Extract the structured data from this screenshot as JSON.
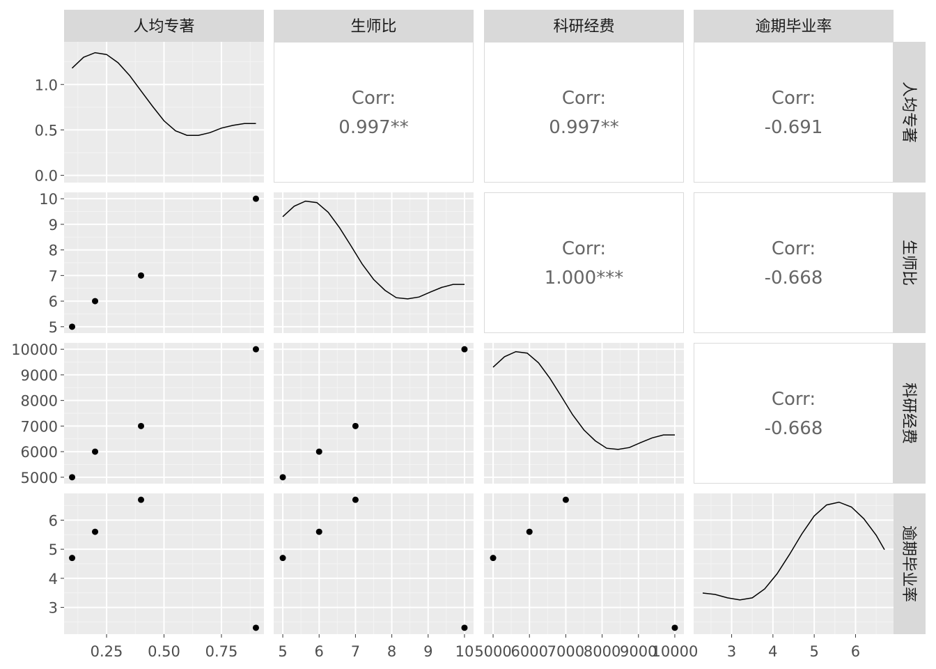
{
  "chart_data": {
    "type": "scatter",
    "title": "",
    "variables": [
      "人均专著",
      "生师比",
      "科研经费",
      "逾期毕业率"
    ],
    "observations": [
      {
        "人均专著": 0.1,
        "生师比": 5,
        "科研经费": 5000,
        "逾期毕业率": 4.7
      },
      {
        "人均专著": 0.2,
        "生师比": 6,
        "科研经费": 6000,
        "逾期毕业率": 5.6
      },
      {
        "人均专著": 0.4,
        "生师比": 7,
        "科研经费": 7000,
        "逾期毕业率": 6.7
      },
      {
        "人均专著": 0.9,
        "生师比": 10,
        "科研经费": 10000,
        "逾期毕业率": 2.3
      }
    ],
    "correlations": [
      {
        "row": "人均专著",
        "col": "生师比",
        "label": "Corr:",
        "value": "0.997**"
      },
      {
        "row": "人均专著",
        "col": "科研经费",
        "label": "Corr:",
        "value": "0.997**"
      },
      {
        "row": "人均专著",
        "col": "逾期毕业率",
        "label": "Corr:",
        "value": "-0.691"
      },
      {
        "row": "生师比",
        "col": "科研经费",
        "label": "Corr:",
        "value": "1.000***"
      },
      {
        "row": "生师比",
        "col": "逾期毕业率",
        "label": "Corr:",
        "value": "-0.668"
      },
      {
        "row": "科研经费",
        "col": "逾期毕业率",
        "label": "Corr:",
        "value": "-0.668"
      }
    ],
    "x_axes": [
      {
        "variable": "人均专著",
        "lim": [
          0.065,
          0.935
        ],
        "ticks": [
          0.25,
          0.5,
          0.75
        ],
        "tick_labels": [
          "0.25",
          "0.50",
          "0.75"
        ]
      },
      {
        "variable": "生师比",
        "lim": [
          4.75,
          10.25
        ],
        "ticks": [
          5,
          6,
          7,
          8,
          9,
          10
        ],
        "tick_labels": [
          "5",
          "6",
          "7",
          "8",
          "9",
          "10"
        ]
      },
      {
        "variable": "科研经费",
        "lim": [
          4750,
          10250
        ],
        "ticks": [
          5000,
          6000,
          7000,
          8000,
          9000,
          10000
        ],
        "tick_labels": [
          "5000",
          "6000",
          "7000",
          "8000",
          "9000",
          "10000"
        ]
      },
      {
        "variable": "逾期毕业率",
        "lim": [
          2.08,
          6.92
        ],
        "ticks": [
          3,
          4,
          5,
          6
        ],
        "tick_labels": [
          "3",
          "4",
          "5",
          "6"
        ]
      }
    ],
    "y_axes": [
      {
        "variable": "人均专著",
        "lim": [
          -0.08,
          1.47
        ],
        "ticks": [
          0,
          0.5,
          1.0
        ],
        "tick_labels": [
          "0.0",
          "0.5",
          "1.0"
        ]
      },
      {
        "variable": "生师比",
        "lim": [
          4.75,
          10.25
        ],
        "ticks": [
          5,
          6,
          7,
          8,
          9,
          10
        ],
        "tick_labels": [
          "5",
          "6",
          "7",
          "8",
          "9",
          "10"
        ]
      },
      {
        "variable": "科研经费",
        "lim": [
          4750,
          10250
        ],
        "ticks": [
          5000,
          6000,
          7000,
          8000,
          9000,
          10000
        ],
        "tick_labels": [
          "5000",
          "6000",
          "7000",
          "8000",
          "9000",
          "10000"
        ]
      },
      {
        "variable": "逾期毕业率",
        "lim": [
          2.08,
          6.92
        ],
        "ticks": [
          3,
          4,
          5,
          6
        ],
        "tick_labels": [
          "3",
          "4",
          "5",
          "6"
        ]
      }
    ],
    "densities": [
      {
        "variable": "人均专著",
        "x": [
          0.1,
          0.15,
          0.2,
          0.25,
          0.3,
          0.35,
          0.4,
          0.45,
          0.5,
          0.55,
          0.6,
          0.65,
          0.7,
          0.75,
          0.8,
          0.85,
          0.9
        ],
        "y": [
          1.18,
          1.3,
          1.35,
          1.33,
          1.24,
          1.1,
          0.93,
          0.76,
          0.6,
          0.49,
          0.44,
          0.44,
          0.47,
          0.52,
          0.55,
          0.57,
          0.57
        ]
      },
      {
        "variable": "生师比",
        "x": [
          5,
          5.3125,
          5.625,
          5.9375,
          6.25,
          6.5625,
          6.875,
          7.1875,
          7.5,
          7.8125,
          8.125,
          8.4375,
          8.75,
          9.0625,
          9.375,
          9.6875,
          10
        ],
        "y": [
          0.0894,
          0.0966,
          0.1001,
          0.0991,
          0.0924,
          0.0818,
          0.0694,
          0.0567,
          0.0462,
          0.0387,
          0.0336,
          0.0328,
          0.0341,
          0.0375,
          0.0407,
          0.0428,
          0.0428
        ]
      },
      {
        "variable": "科研经费",
        "x": [
          5000,
          5312.5,
          5625,
          5937.5,
          6250,
          6562.5,
          6875,
          7187.5,
          7500,
          7812.5,
          8125,
          8437.5,
          8750,
          9062.5,
          9375,
          9687.5,
          10000
        ],
        "y": [
          8.94e-05,
          9.66e-05,
          0.0001001,
          9.91e-05,
          9.24e-05,
          8.18e-05,
          6.94e-05,
          5.67e-05,
          4.62e-05,
          3.87e-05,
          3.36e-05,
          3.28e-05,
          3.41e-05,
          3.75e-05,
          4.07e-05,
          4.28e-05,
          4.28e-05
        ]
      },
      {
        "variable": "逾期毕业率",
        "x": [
          2.3,
          2.6,
          2.9,
          3.2,
          3.5,
          3.8,
          4.1,
          4.4,
          4.7,
          5.0,
          5.3,
          5.6,
          5.9,
          6.2,
          6.5,
          6.7
        ],
        "y": [
          0.102,
          0.1,
          0.095,
          0.092,
          0.095,
          0.108,
          0.13,
          0.158,
          0.188,
          0.214,
          0.23,
          0.234,
          0.227,
          0.21,
          0.186,
          0.165
        ]
      }
    ]
  },
  "colors": {
    "panel_bg": "#ebebeb",
    "grid_major": "#ffffff",
    "grid_minor": "#f4f4f4",
    "strip_bg": "#d9d9d9",
    "strip_text": "#1a1a1a",
    "tick_text": "#4d4d4d",
    "corr_text": "#666666",
    "point": "#000000",
    "line": "#000000"
  }
}
